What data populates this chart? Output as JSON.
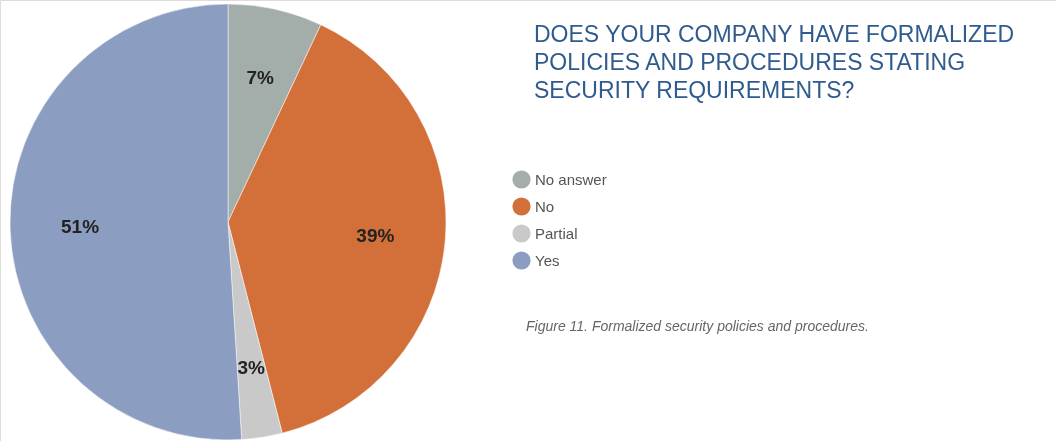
{
  "chart_data": {
    "type": "pie",
    "title": "DOES YOUR COMPANY HAVE FORMALIZED POLICIES AND PROCEDURES STATING SECURITY REQUIREMENTS?",
    "categories": [
      "No answer",
      "No",
      "Partial",
      "Yes"
    ],
    "values": [
      7,
      39,
      3,
      51
    ],
    "colors": [
      "#a3aeaa",
      "#d36f38",
      "#c9c9c9",
      "#8b9dc0"
    ],
    "value_labels": [
      "7%",
      "39%",
      "3%",
      "51%"
    ],
    "legend": "right",
    "annotations": [
      "Figure 11. Formalized security policies and procedures."
    ]
  }
}
